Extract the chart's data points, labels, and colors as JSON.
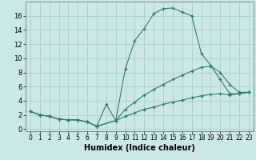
{
  "xlabel": "Humidex (Indice chaleur)",
  "bg_color": "#cce8e6",
  "line_color": "#2e7d6e",
  "grid_color": "#aacfcc",
  "xlim": [
    -0.5,
    23.5
  ],
  "ylim": [
    -0.3,
    18
  ],
  "xticks": [
    0,
    1,
    2,
    3,
    4,
    5,
    6,
    7,
    8,
    9,
    10,
    11,
    12,
    13,
    14,
    15,
    16,
    17,
    18,
    19,
    20,
    21,
    22,
    23
  ],
  "yticks": [
    0,
    2,
    4,
    6,
    8,
    10,
    12,
    14,
    16
  ],
  "series": [
    {
      "x": [
        0,
        1,
        2,
        3,
        4,
        5,
        6,
        7,
        8,
        9,
        10,
        11,
        12,
        13,
        14,
        15,
        16,
        17,
        18,
        19,
        20,
        21,
        22,
        23
      ],
      "y": [
        2.5,
        2.0,
        1.8,
        1.4,
        1.3,
        1.3,
        1.0,
        0.4,
        3.5,
        1.2,
        8.5,
        12.5,
        14.2,
        16.3,
        17.0,
        17.1,
        16.5,
        16.0,
        10.7,
        9.0,
        7.0,
        5.0,
        5.0,
        5.2
      ]
    },
    {
      "x": [
        0,
        1,
        2,
        3,
        4,
        5,
        6,
        7,
        9,
        10,
        11,
        12,
        13,
        14,
        15,
        16,
        17,
        18,
        19,
        20,
        21,
        22,
        23
      ],
      "y": [
        2.5,
        2.0,
        1.8,
        1.4,
        1.3,
        1.3,
        1.0,
        0.4,
        1.2,
        2.8,
        3.8,
        4.8,
        5.6,
        6.3,
        7.0,
        7.6,
        8.2,
        8.7,
        8.9,
        8.0,
        6.3,
        5.2,
        5.2
      ]
    },
    {
      "x": [
        0,
        1,
        2,
        3,
        4,
        5,
        6,
        7,
        9,
        10,
        11,
        12,
        13,
        14,
        15,
        16,
        17,
        18,
        19,
        20,
        21,
        22,
        23
      ],
      "y": [
        2.5,
        2.0,
        1.8,
        1.4,
        1.3,
        1.3,
        1.0,
        0.4,
        1.2,
        1.8,
        2.3,
        2.8,
        3.1,
        3.5,
        3.8,
        4.1,
        4.4,
        4.7,
        4.9,
        5.0,
        4.8,
        5.0,
        5.2
      ]
    }
  ]
}
